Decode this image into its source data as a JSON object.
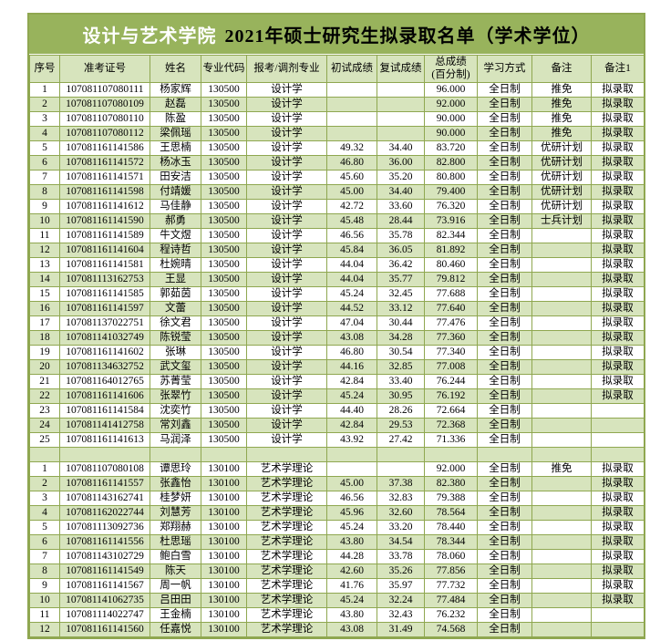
{
  "title": {
    "school": "设计与艺术学院",
    "rest": "2021年硕士研究生拟录取名单（学术学位）"
  },
  "colors": {
    "title_bg": "#98b35c",
    "row_alt": "#d7e4bd",
    "border": "#8fa750",
    "row_bg": "#ffffff",
    "title_school_text": "#ffffff",
    "title_rest_text": "#000000"
  },
  "table": {
    "columns": [
      "序号",
      "准考证号",
      "姓名",
      "专业代码",
      "报考/调剂专业",
      "初试成绩",
      "复试成绩",
      "总成绩\n(百分制)",
      "学习方式",
      "备注",
      "备注1"
    ],
    "sections": [
      {
        "major": "设计学",
        "major_code": "130500",
        "rows": [
          [
            "1",
            "107081107080111",
            "杨家辉",
            "130500",
            "设计学",
            "",
            "",
            "96.000",
            "全日制",
            "推免",
            "拟录取"
          ],
          [
            "2",
            "107081107080109",
            "赵磊",
            "130500",
            "设计学",
            "",
            "",
            "92.000",
            "全日制",
            "推免",
            "拟录取"
          ],
          [
            "3",
            "107081107080110",
            "陈盈",
            "130500",
            "设计学",
            "",
            "",
            "90.000",
            "全日制",
            "推免",
            "拟录取"
          ],
          [
            "4",
            "107081107080112",
            "梁佩瑶",
            "130500",
            "设计学",
            "",
            "",
            "90.000",
            "全日制",
            "推免",
            "拟录取"
          ],
          [
            "5",
            "107081161141586",
            "王思楠",
            "130500",
            "设计学",
            "49.32",
            "34.40",
            "83.720",
            "全日制",
            "优研计划",
            "拟录取"
          ],
          [
            "6",
            "107081161141572",
            "杨冰玉",
            "130500",
            "设计学",
            "46.80",
            "36.00",
            "82.800",
            "全日制",
            "优研计划",
            "拟录取"
          ],
          [
            "7",
            "107081161141571",
            "田安洁",
            "130500",
            "设计学",
            "45.60",
            "35.20",
            "80.800",
            "全日制",
            "优研计划",
            "拟录取"
          ],
          [
            "8",
            "107081161141598",
            "付靖媛",
            "130500",
            "设计学",
            "45.00",
            "34.40",
            "79.400",
            "全日制",
            "优研计划",
            "拟录取"
          ],
          [
            "9",
            "107081161141612",
            "马佳静",
            "130500",
            "设计学",
            "42.72",
            "33.60",
            "76.320",
            "全日制",
            "优研计划",
            "拟录取"
          ],
          [
            "10",
            "107081161141590",
            "郝勇",
            "130500",
            "设计学",
            "45.48",
            "28.44",
            "73.916",
            "全日制",
            "士兵计划",
            "拟录取"
          ],
          [
            "11",
            "107081161141589",
            "牛文煜",
            "130500",
            "设计学",
            "46.56",
            "35.78",
            "82.344",
            "全日制",
            "",
            "拟录取"
          ],
          [
            "12",
            "107081161141604",
            "程诗哲",
            "130500",
            "设计学",
            "45.84",
            "36.05",
            "81.892",
            "全日制",
            "",
            "拟录取"
          ],
          [
            "13",
            "107081161141581",
            "杜婉晴",
            "130500",
            "设计学",
            "44.04",
            "36.42",
            "80.460",
            "全日制",
            "",
            "拟录取"
          ],
          [
            "14",
            "107081113162753",
            "王显",
            "130500",
            "设计学",
            "44.04",
            "35.77",
            "79.812",
            "全日制",
            "",
            "拟录取"
          ],
          [
            "15",
            "107081161141585",
            "郭茹茵",
            "130500",
            "设计学",
            "45.24",
            "32.45",
            "77.688",
            "全日制",
            "",
            "拟录取"
          ],
          [
            "16",
            "107081161141597",
            "文蕾",
            "130500",
            "设计学",
            "44.52",
            "33.12",
            "77.640",
            "全日制",
            "",
            "拟录取"
          ],
          [
            "17",
            "107081137022751",
            "徐文君",
            "130500",
            "设计学",
            "47.04",
            "30.44",
            "77.476",
            "全日制",
            "",
            "拟录取"
          ],
          [
            "18",
            "107081141032749",
            "陈锐莹",
            "130500",
            "设计学",
            "43.08",
            "34.28",
            "77.360",
            "全日制",
            "",
            "拟录取"
          ],
          [
            "19",
            "107081161141602",
            "张琳",
            "130500",
            "设计学",
            "46.80",
            "30.54",
            "77.340",
            "全日制",
            "",
            "拟录取"
          ],
          [
            "20",
            "107081134632752",
            "武文玺",
            "130500",
            "设计学",
            "44.16",
            "32.85",
            "77.008",
            "全日制",
            "",
            "拟录取"
          ],
          [
            "21",
            "107081164012765",
            "苏菁莹",
            "130500",
            "设计学",
            "42.84",
            "33.40",
            "76.244",
            "全日制",
            "",
            "拟录取"
          ],
          [
            "22",
            "107081161141606",
            "张翠竹",
            "130500",
            "设计学",
            "45.24",
            "30.95",
            "76.192",
            "全日制",
            "",
            "拟录取"
          ],
          [
            "23",
            "107081161141584",
            "沈奕竹",
            "130500",
            "设计学",
            "44.40",
            "28.26",
            "72.664",
            "全日制",
            "",
            ""
          ],
          [
            "24",
            "107081141412758",
            "常刘鑫",
            "130500",
            "设计学",
            "42.84",
            "29.53",
            "72.368",
            "全日制",
            "",
            ""
          ],
          [
            "25",
            "107081161141613",
            "马润泽",
            "130500",
            "设计学",
            "43.92",
            "27.42",
            "71.336",
            "全日制",
            "",
            ""
          ]
        ]
      },
      {
        "major": "艺术学理论",
        "major_code": "130100",
        "rows": [
          [
            "1",
            "107081107080108",
            "谭思玲",
            "130100",
            "艺术学理论",
            "",
            "",
            "92.000",
            "全日制",
            "推免",
            "拟录取"
          ],
          [
            "2",
            "107081161141557",
            "张鑫怡",
            "130100",
            "艺术学理论",
            "45.00",
            "37.38",
            "82.380",
            "全日制",
            "",
            "拟录取"
          ],
          [
            "3",
            "107081143162741",
            "桂梦妍",
            "130100",
            "艺术学理论",
            "46.56",
            "32.83",
            "79.388",
            "全日制",
            "",
            "拟录取"
          ],
          [
            "4",
            "107081162022744",
            "刘慧芳",
            "130100",
            "艺术学理论",
            "45.96",
            "32.60",
            "78.564",
            "全日制",
            "",
            "拟录取"
          ],
          [
            "5",
            "107081113092736",
            "郑翔赫",
            "130100",
            "艺术学理论",
            "45.24",
            "33.20",
            "78.440",
            "全日制",
            "",
            "拟录取"
          ],
          [
            "6",
            "107081161141556",
            "杜思瑶",
            "130100",
            "艺术学理论",
            "43.80",
            "34.54",
            "78.344",
            "全日制",
            "",
            "拟录取"
          ],
          [
            "7",
            "107081143102729",
            "鲍白雪",
            "130100",
            "艺术学理论",
            "44.28",
            "33.78",
            "78.060",
            "全日制",
            "",
            "拟录取"
          ],
          [
            "8",
            "107081161141549",
            "陈天",
            "130100",
            "艺术学理论",
            "42.60",
            "35.26",
            "77.856",
            "全日制",
            "",
            "拟录取"
          ],
          [
            "9",
            "107081161141567",
            "周一帆",
            "130100",
            "艺术学理论",
            "41.76",
            "35.97",
            "77.732",
            "全日制",
            "",
            "拟录取"
          ],
          [
            "10",
            "107081141062735",
            "吕田田",
            "130100",
            "艺术学理论",
            "45.24",
            "32.24",
            "77.484",
            "全日制",
            "",
            "拟录取"
          ],
          [
            "11",
            "107081114022747",
            "王金楠",
            "130100",
            "艺术学理论",
            "43.80",
            "32.43",
            "76.232",
            "全日制",
            "",
            ""
          ],
          [
            "12",
            "107081161141560",
            "任嘉悦",
            "130100",
            "艺术学理论",
            "43.08",
            "31.49",
            "74.568",
            "全日制",
            "",
            ""
          ]
        ]
      }
    ]
  }
}
